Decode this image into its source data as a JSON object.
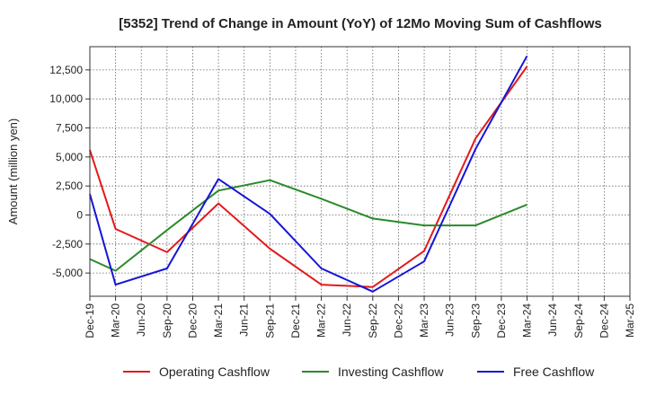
{
  "chart_data": {
    "type": "line",
    "title": "[5352]  Trend of Change in Amount (YoY) of 12Mo Moving Sum of Cashflows",
    "xlabel": "",
    "ylabel": "Amount (million yen)",
    "ylim": [
      -7000,
      14500
    ],
    "yticks": [
      -5000,
      -2500,
      0,
      2500,
      5000,
      7500,
      10000,
      12500
    ],
    "ytick_labels": [
      "-5,000",
      "-2,500",
      "0",
      "2,500",
      "5,000",
      "7,500",
      "10,000",
      "12,500"
    ],
    "categories": [
      "Dec-19",
      "Mar-20",
      "Jun-20",
      "Sep-20",
      "Dec-20",
      "Mar-21",
      "Jun-21",
      "Sep-21",
      "Dec-21",
      "Mar-22",
      "Jun-22",
      "Sep-22",
      "Dec-22",
      "Mar-23",
      "Jun-23",
      "Sep-23",
      "Dec-23",
      "Mar-24",
      "Jun-24",
      "Sep-24",
      "Dec-24",
      "Mar-25"
    ],
    "grid": true,
    "legend_position": "bottom",
    "series": [
      {
        "name": "Operating Cashflow",
        "color": "#e31a1c",
        "values": [
          5600,
          -1200,
          null,
          -3200,
          null,
          1000,
          null,
          -2900,
          null,
          -6000,
          null,
          -6200,
          null,
          -3100,
          null,
          6600,
          null,
          12800,
          null,
          null,
          null,
          null
        ]
      },
      {
        "name": "Investing Cashflow",
        "color": "#2b8a2b",
        "values": [
          -3800,
          -4800,
          null,
          -1300,
          null,
          2100,
          null,
          3000,
          null,
          1400,
          null,
          -300,
          null,
          -900,
          null,
          -900,
          null,
          900,
          null,
          null,
          null,
          null
        ]
      },
      {
        "name": "Free Cashflow",
        "color": "#1515d6",
        "values": [
          1800,
          -6000,
          null,
          -4600,
          null,
          3100,
          null,
          100,
          null,
          -4600,
          null,
          -6600,
          null,
          -4000,
          null,
          5700,
          null,
          13700,
          null,
          null,
          null,
          null
        ]
      }
    ]
  }
}
